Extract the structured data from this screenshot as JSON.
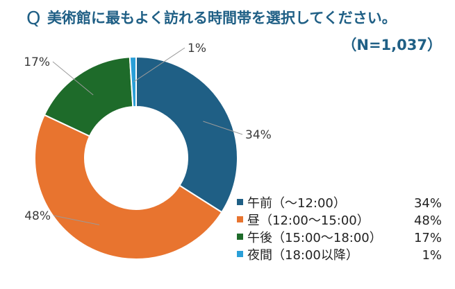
{
  "question": {
    "marker": "Q",
    "text": "美術館に最もよく訪れる時間帯を選択してください。",
    "sample": "（N=1,037）"
  },
  "chart_data": {
    "type": "pie",
    "variant": "donut",
    "title": "美術館に最もよく訪れる時間帯を選択してください。",
    "subtitle": "（N=1,037）",
    "categories": [
      "午前（～12:00）",
      "昼（12:00～15:00）",
      "午後（15:00～18:00）",
      "夜間（18:00以降）"
    ],
    "values": [
      34,
      48,
      17,
      1
    ],
    "value_labels": [
      "34%",
      "48%",
      "17%",
      "1%"
    ],
    "colors": [
      "#1f5f85",
      "#e8742f",
      "#1e6b2a",
      "#2a9fd8"
    ],
    "legend_position": "bottom-right"
  }
}
